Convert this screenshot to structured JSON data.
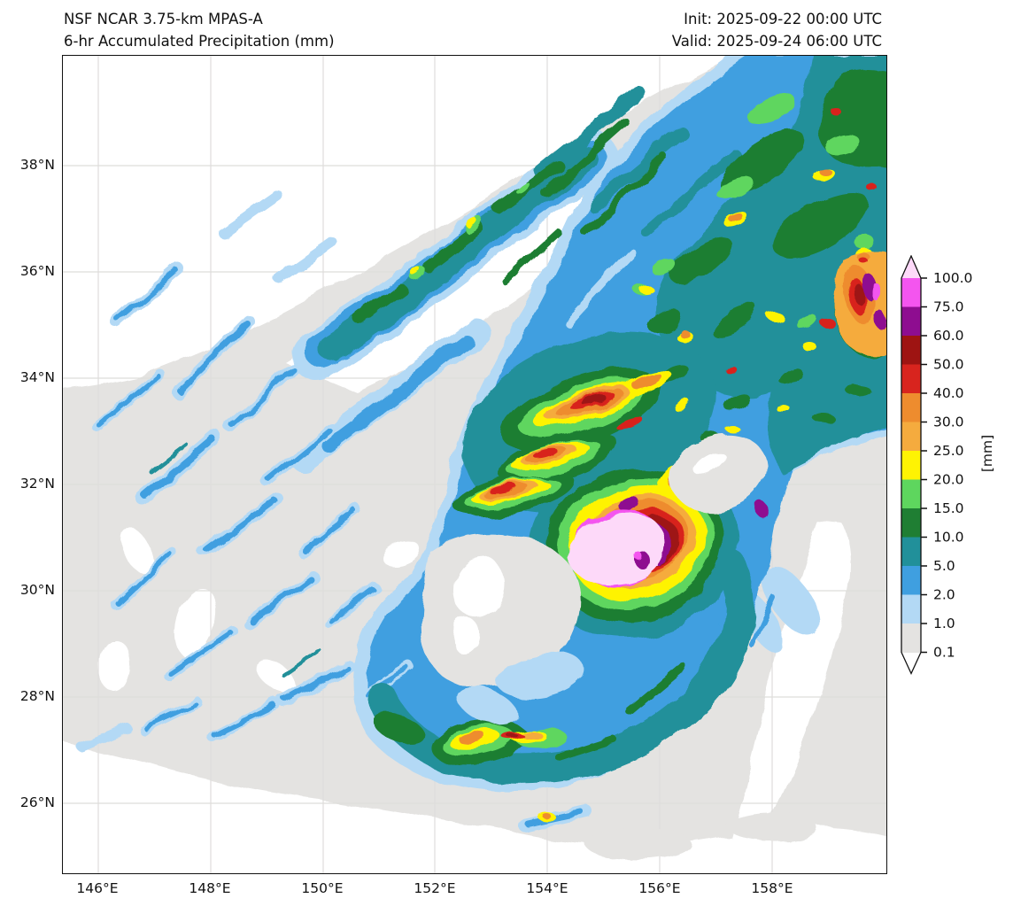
{
  "header": {
    "title_line1": "NSF NCAR 3.75-km MPAS-A",
    "title_line2": "6-hr Accumulated Precipitation (mm)",
    "init": "Init: 2025-09-22 00:00 UTC",
    "valid": "Valid: 2025-09-24 06:00 UTC"
  },
  "axes": {
    "x_ticks": [
      "146°E",
      "148°E",
      "150°E",
      "152°E",
      "154°E",
      "156°E",
      "158°E"
    ],
    "y_ticks": [
      "38°N",
      "36°N",
      "34°N",
      "32°N",
      "30°N",
      "28°N",
      "26°N"
    ]
  },
  "colorbar": {
    "unit": "[mm]",
    "levels": [
      "100.0",
      "75.0",
      "60.0",
      "50.0",
      "40.0",
      "30.0",
      "25.0",
      "20.0",
      "15.0",
      "10.0",
      "5.0",
      "2.0",
      "1.0",
      "0.1"
    ],
    "colors": [
      "#f455ef",
      "#8e0d90",
      "#9e1412",
      "#d8241e",
      "#ee8c2e",
      "#f5ab3e",
      "#fef303",
      "#5ed65e",
      "#1f7e33",
      "#21909a",
      "#3f9fe0",
      "#b3d9f5",
      "#e4e3e1"
    ],
    "over_color": "#fdd9f9",
    "under_color": "#ffffff"
  },
  "chart_data": {
    "type": "heatmap",
    "subtype": "filled-contour precipitation map (tropical cyclone)",
    "title": "NSF NCAR 3.75-km MPAS-A — 6-hr Accumulated Precipitation (mm)",
    "init_time": "2025-09-22 00:00 UTC",
    "valid_time": "2025-09-24 06:00 UTC",
    "units": "mm",
    "lon_ticks_deg_e": [
      146,
      148,
      150,
      152,
      154,
      156,
      158
    ],
    "lat_ticks_deg_n": [
      38,
      36,
      34,
      32,
      30,
      28,
      26
    ],
    "lon_range_deg_e": [
      145.4,
      160.0
    ],
    "lat_range_deg_n": [
      24.9,
      40.1
    ],
    "contour_levels_mm": [
      0.1,
      1.0,
      2.0,
      5.0,
      10.0,
      15.0,
      20.0,
      25.0,
      30.0,
      40.0,
      50.0,
      60.0,
      75.0,
      100.0
    ],
    "level_colors": [
      "#e4e3e1",
      "#b3d9f5",
      "#3f9fe0",
      "#21909a",
      "#1f7e33",
      "#5ed65e",
      "#fef303",
      "#f5ab3e",
      "#ee8c2e",
      "#d8241e",
      "#9e1412",
      "#8e0d90",
      "#f455ef"
    ],
    "over_100mm_color": "#fdd9f9",
    "grid": true,
    "features": {
      "storm_core": {
        "lon_e": 155.3,
        "lat_n": 30.9,
        "peak_precip_mm": ">100"
      },
      "eye_dry_region": {
        "lon_e": 154.0,
        "lat_n": 30.5,
        "precip_mm": "<1"
      },
      "main_convective_shield": "broad 5-20 mm swath NE quadrant toward 158E/38N with embedded 25-100 mm cells",
      "outer_rainbands": "spiral bands west and south, 1-5 mm streaks over <1 mm background",
      "southern_band_cells": "20-50 mm cells near 152-154E, 27.5N"
    }
  }
}
